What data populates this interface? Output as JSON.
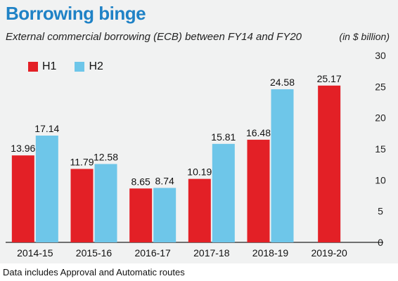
{
  "header": {
    "title": "Borrowing binge",
    "subtitle": "External commercial borrowing (ECB)  between FY14 and FY20",
    "unit": "(in $ billion)"
  },
  "footer": {
    "source_note": "Data includes Approval and Automatic routes"
  },
  "colors": {
    "H1": "#e32026",
    "H2": "#6ec6e9",
    "title": "#1f82c6",
    "background": "#f1f2f2"
  },
  "chart_data": {
    "type": "bar",
    "title": "Borrowing binge",
    "subtitle": "External commercial borrowing (ECB)  between FY14 and FY20",
    "ylabel": "(in $ billion)",
    "xlabel": "",
    "categories": [
      "2014-15",
      "2015-16",
      "2016-17",
      "2017-18",
      "2018-19",
      "2019-20"
    ],
    "series": [
      {
        "name": "H1",
        "values": [
          13.96,
          11.79,
          8.65,
          10.19,
          16.48,
          25.17
        ],
        "labels": [
          "13.96",
          "11.79",
          "8.65",
          "10.19",
          "16.48",
          "25.17"
        ]
      },
      {
        "name": "H2",
        "values": [
          17.14,
          12.58,
          8.74,
          15.81,
          24.58,
          null
        ],
        "labels": [
          "17.14",
          "12.58",
          "8.74",
          "15.81",
          "24.58",
          null
        ]
      }
    ],
    "ylim": [
      0,
      30
    ],
    "yticks": [
      "0",
      "5",
      "10",
      "15",
      "20",
      "25",
      "30"
    ],
    "y_axis_position": "right",
    "grid": false,
    "legend": "top-left"
  }
}
